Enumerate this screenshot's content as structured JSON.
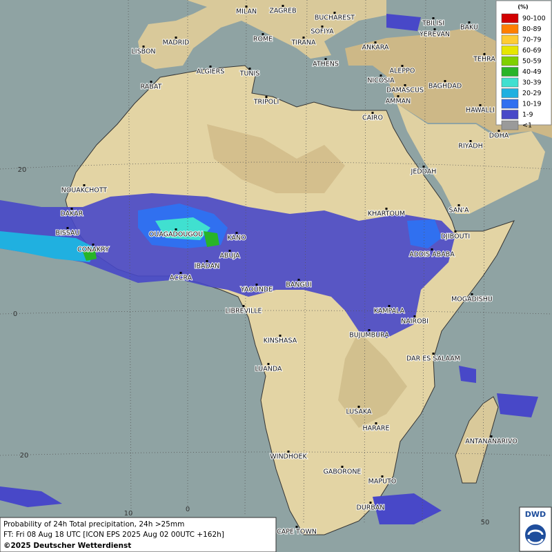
{
  "map": {
    "cities": [
      "MILAN",
      "ZAGREB",
      "BUCHAREST",
      "TBILISI",
      "BAKU",
      "ROME",
      "SOFIYA",
      "YEREVAN",
      "MADRID",
      "TIRANA",
      "ANKARA",
      "TEHRA",
      "LISBON",
      "ATHENS",
      "ALGIERS",
      "TUNIS",
      "ALEPPO",
      "RABAT",
      "NICOSIA",
      "BAGHDAD",
      "DAMASCUS",
      "TRIPOLI",
      "AMMAN",
      "HAWALLI",
      "CAIRO",
      "DOHA",
      "RIYADH",
      "JEDDAH",
      "NOUAKCHOTT",
      "DAKAR",
      "KHARTOUM",
      "SAN'A",
      "BISSAU",
      "DJIBOUTI",
      "OUAGADOUGOU",
      "KANO",
      "CONAKRY",
      "ABUJA",
      "ADDIS ABABA",
      "IBADAN",
      "ACCRA",
      "BANGUI",
      "YAOUNDE",
      "MOGADISHU",
      "LIBREVILLE",
      "KAMPALA",
      "NAIROBI",
      "BUJUMBURA",
      "KINSHASA",
      "DAR ES SALAAM",
      "LUANDA",
      "LUSAKA",
      "HARARE",
      "ANTANANARIVO",
      "WINDHOEK",
      "GABORONE",
      "MAPUTO",
      "DURBAN",
      "CAPE TOWN"
    ],
    "lat_labels": [
      20,
      0,
      20
    ],
    "lon_labels": [
      10,
      0,
      50
    ]
  },
  "legend": {
    "unit": "(%)",
    "items": [
      {
        "label": "90-100",
        "color": "#d20000"
      },
      {
        "label": "80-89",
        "color": "#ff7f00"
      },
      {
        "label": "70-79",
        "color": "#ffcc33"
      },
      {
        "label": "60-69",
        "color": "#e6e600"
      },
      {
        "label": "50-59",
        "color": "#80d000"
      },
      {
        "label": "40-49",
        "color": "#28b428"
      },
      {
        "label": "30-39",
        "color": "#40e0d0"
      },
      {
        "label": "20-29",
        "color": "#20b0e0"
      },
      {
        "label": "10-19",
        "color": "#3070f0"
      },
      {
        "label": "1-9",
        "color": "#4848c8"
      },
      {
        "label": "<1",
        "color": "#9a9a9a"
      }
    ]
  },
  "footer": {
    "line1": "Probability of 24h Total precipitation, 24h >25mm",
    "line2": "FT: Fri 08 Aug 18 UTC [ICON EPS 2025 Aug 02 00UTC +162h]",
    "line3": "©2025 Deutscher Wetterdienst"
  },
  "logo": "DWD"
}
